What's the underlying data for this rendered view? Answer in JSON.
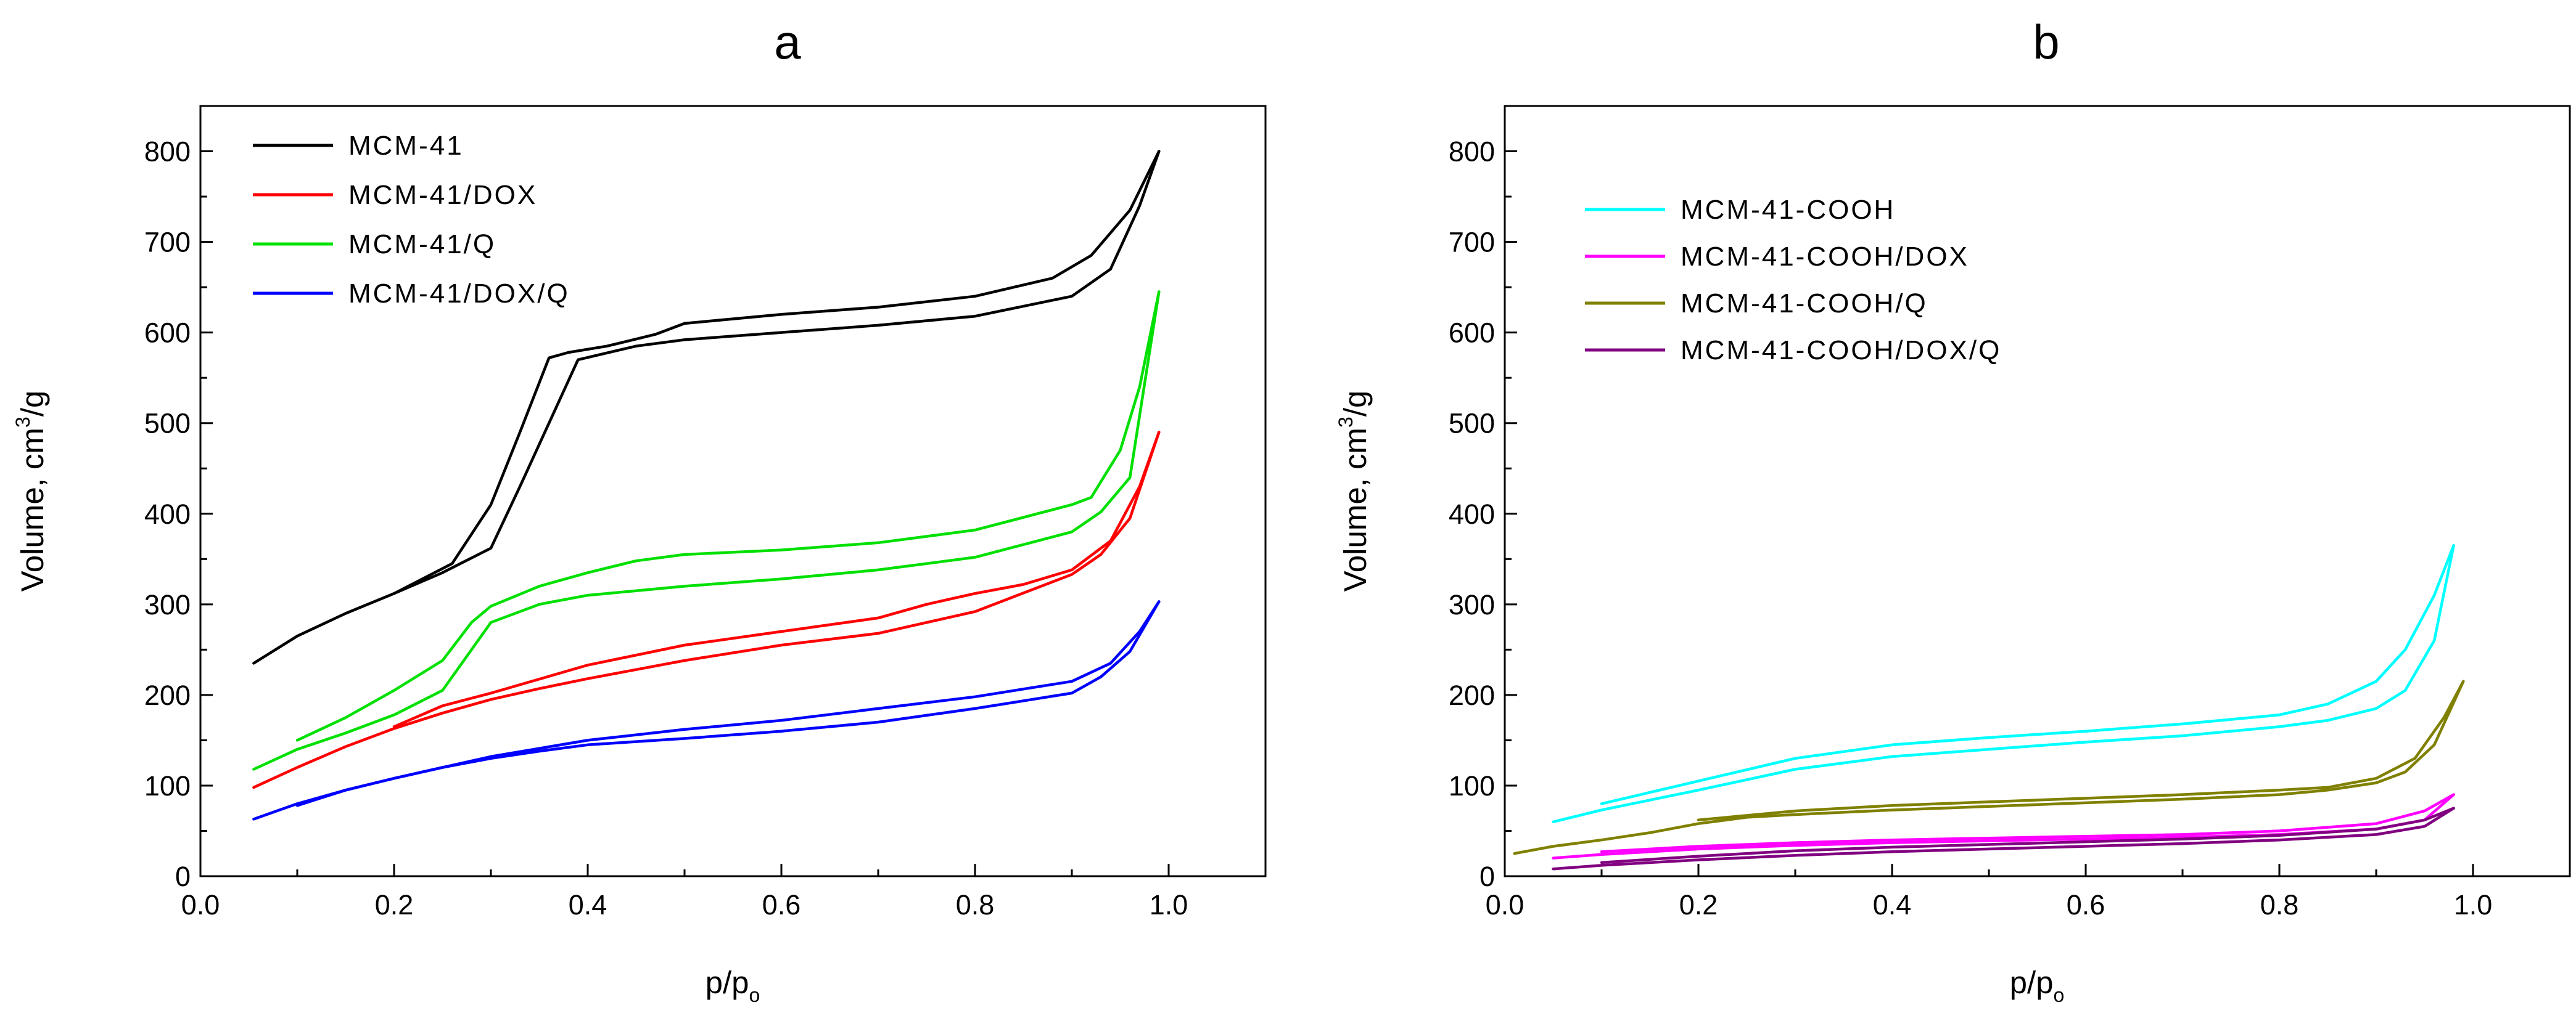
{
  "chart_data": [
    {
      "panel": "a",
      "type": "line",
      "title": "a",
      "xlabel": "p/p",
      "xlabel_sub": "o",
      "ylabel": "Volume, cm",
      "ylabel_sup": "3",
      "ylabel_tail": "/g",
      "xlim": [
        0.0,
        1.1
      ],
      "ylim": [
        0,
        850
      ],
      "xticks": [
        0.0,
        0.2,
        0.4,
        0.6,
        0.8,
        1.0
      ],
      "xtick_labels": [
        "0.0",
        "0.2",
        "0.4",
        "0.6",
        "0.8",
        "1.0"
      ],
      "yticks": [
        0,
        100,
        200,
        300,
        400,
        500,
        600,
        700,
        800
      ],
      "ytick_labels": [
        "0",
        "100",
        "200",
        "300",
        "400",
        "500",
        "600",
        "700",
        "800"
      ],
      "legend_position": "top-left",
      "series": [
        {
          "name": "MCM-41",
          "color": "#000000",
          "adsorption": [
            [
              0.055,
              235
            ],
            [
              0.1,
              265
            ],
            [
              0.15,
              290
            ],
            [
              0.2,
              312
            ],
            [
              0.25,
              335
            ],
            [
              0.3,
              362
            ],
            [
              0.33,
              430
            ],
            [
              0.36,
              500
            ],
            [
              0.39,
              570
            ],
            [
              0.45,
              585
            ],
            [
              0.5,
              592
            ],
            [
              0.6,
              600
            ],
            [
              0.7,
              608
            ],
            [
              0.8,
              618
            ],
            [
              0.9,
              640
            ],
            [
              0.94,
              670
            ],
            [
              0.97,
              740
            ],
            [
              0.99,
              800
            ]
          ],
          "desorption": [
            [
              0.99,
              800
            ],
            [
              0.96,
              735
            ],
            [
              0.92,
              685
            ],
            [
              0.88,
              660
            ],
            [
              0.8,
              640
            ],
            [
              0.7,
              628
            ],
            [
              0.6,
              620
            ],
            [
              0.5,
              610
            ],
            [
              0.47,
              598
            ],
            [
              0.42,
              585
            ],
            [
              0.38,
              578
            ],
            [
              0.36,
              572
            ],
            [
              0.33,
              490
            ],
            [
              0.3,
              410
            ],
            [
              0.26,
              345
            ],
            [
              0.2,
              312
            ]
          ]
        },
        {
          "name": "MCM-41/DOX",
          "color": "#ff0000",
          "adsorption": [
            [
              0.055,
              98
            ],
            [
              0.1,
              120
            ],
            [
              0.15,
              143
            ],
            [
              0.2,
              163
            ],
            [
              0.25,
              180
            ],
            [
              0.3,
              195
            ],
            [
              0.35,
              207
            ],
            [
              0.4,
              218
            ],
            [
              0.5,
              238
            ],
            [
              0.6,
              255
            ],
            [
              0.7,
              268
            ],
            [
              0.8,
              292
            ],
            [
              0.9,
              333
            ],
            [
              0.93,
              355
            ],
            [
              0.96,
              395
            ],
            [
              0.99,
              490
            ]
          ],
          "desorption": [
            [
              0.99,
              490
            ],
            [
              0.97,
              430
            ],
            [
              0.94,
              370
            ],
            [
              0.9,
              338
            ],
            [
              0.85,
              322
            ],
            [
              0.8,
              312
            ],
            [
              0.75,
              300
            ],
            [
              0.7,
              285
            ],
            [
              0.6,
              270
            ],
            [
              0.5,
              255
            ],
            [
              0.4,
              233
            ],
            [
              0.3,
              202
            ],
            [
              0.25,
              188
            ],
            [
              0.2,
              165
            ]
          ]
        },
        {
          "name": "MCM-41/Q",
          "color": "#00e000",
          "adsorption": [
            [
              0.055,
              118
            ],
            [
              0.1,
              140
            ],
            [
              0.15,
              158
            ],
            [
              0.2,
              178
            ],
            [
              0.25,
              205
            ],
            [
              0.27,
              235
            ],
            [
              0.3,
              280
            ],
            [
              0.35,
              300
            ],
            [
              0.4,
              310
            ],
            [
              0.5,
              320
            ],
            [
              0.6,
              328
            ],
            [
              0.7,
              338
            ],
            [
              0.8,
              352
            ],
            [
              0.9,
              380
            ],
            [
              0.93,
              402
            ],
            [
              0.96,
              440
            ],
            [
              0.99,
              645
            ]
          ],
          "desorption": [
            [
              0.99,
              645
            ],
            [
              0.97,
              540
            ],
            [
              0.95,
              470
            ],
            [
              0.92,
              418
            ],
            [
              0.9,
              410
            ],
            [
              0.8,
              382
            ],
            [
              0.7,
              368
            ],
            [
              0.6,
              360
            ],
            [
              0.5,
              355
            ],
            [
              0.45,
              348
            ],
            [
              0.4,
              335
            ],
            [
              0.35,
              320
            ],
            [
              0.3,
              298
            ],
            [
              0.28,
              280
            ],
            [
              0.25,
              238
            ],
            [
              0.2,
              205
            ],
            [
              0.15,
              175
            ],
            [
              0.1,
              150
            ]
          ]
        },
        {
          "name": "MCM-41/DOX/Q",
          "color": "#0000ff",
          "adsorption": [
            [
              0.055,
              63
            ],
            [
              0.1,
              80
            ],
            [
              0.15,
              95
            ],
            [
              0.2,
              108
            ],
            [
              0.25,
              120
            ],
            [
              0.3,
              130
            ],
            [
              0.35,
              138
            ],
            [
              0.4,
              145
            ],
            [
              0.5,
              152
            ],
            [
              0.6,
              160
            ],
            [
              0.7,
              170
            ],
            [
              0.8,
              185
            ],
            [
              0.9,
              202
            ],
            [
              0.93,
              220
            ],
            [
              0.96,
              248
            ],
            [
              0.99,
              303
            ]
          ],
          "desorption": [
            [
              0.99,
              303
            ],
            [
              0.97,
              270
            ],
            [
              0.94,
              235
            ],
            [
              0.9,
              215
            ],
            [
              0.8,
              198
            ],
            [
              0.7,
              185
            ],
            [
              0.6,
              172
            ],
            [
              0.5,
              162
            ],
            [
              0.4,
              150
            ],
            [
              0.3,
              132
            ],
            [
              0.2,
              108
            ],
            [
              0.15,
              95
            ],
            [
              0.1,
              78
            ]
          ]
        }
      ]
    },
    {
      "panel": "b",
      "type": "line",
      "title": "b",
      "xlabel": "p/p",
      "xlabel_sub": "o",
      "ylabel": "Volume, cm",
      "ylabel_sup": "3",
      "ylabel_tail": "/g",
      "xlim": [
        0.0,
        1.1
      ],
      "ylim": [
        0,
        850
      ],
      "xticks": [
        0.0,
        0.2,
        0.4,
        0.6,
        0.8,
        1.0
      ],
      "xtick_labels": [
        "0.0",
        "0.2",
        "0.4",
        "0.6",
        "0.8",
        "1.0"
      ],
      "yticks": [
        0,
        100,
        200,
        300,
        400,
        500,
        600,
        700,
        800
      ],
      "ytick_labels": [
        "0",
        "100",
        "200",
        "300",
        "400",
        "500",
        "600",
        "700",
        "800"
      ],
      "legend_position": "top-left",
      "series": [
        {
          "name": "MCM-41-COOH",
          "color": "#00ffff",
          "adsorption": [
            [
              0.05,
              60
            ],
            [
              0.1,
              73
            ],
            [
              0.2,
              95
            ],
            [
              0.3,
              118
            ],
            [
              0.4,
              132
            ],
            [
              0.5,
              140
            ],
            [
              0.6,
              148
            ],
            [
              0.7,
              155
            ],
            [
              0.8,
              165
            ],
            [
              0.85,
              172
            ],
            [
              0.9,
              185
            ],
            [
              0.93,
              205
            ],
            [
              0.96,
              260
            ],
            [
              0.98,
              365
            ]
          ],
          "desorption": [
            [
              0.98,
              365
            ],
            [
              0.96,
              310
            ],
            [
              0.93,
              250
            ],
            [
              0.9,
              215
            ],
            [
              0.85,
              190
            ],
            [
              0.8,
              178
            ],
            [
              0.7,
              168
            ],
            [
              0.6,
              160
            ],
            [
              0.5,
              153
            ],
            [
              0.4,
              145
            ],
            [
              0.3,
              130
            ],
            [
              0.2,
              105
            ],
            [
              0.1,
              80
            ]
          ]
        },
        {
          "name": "MCM-41-COOH/DOX",
          "color": "#ff00ff",
          "adsorption": [
            [
              0.05,
              20
            ],
            [
              0.1,
              24
            ],
            [
              0.2,
              30
            ],
            [
              0.3,
              34
            ],
            [
              0.4,
              37
            ],
            [
              0.5,
              39
            ],
            [
              0.6,
              41
            ],
            [
              0.7,
              43
            ],
            [
              0.8,
              46
            ],
            [
              0.9,
              52
            ],
            [
              0.95,
              62
            ],
            [
              0.98,
              90
            ]
          ],
          "desorption": [
            [
              0.98,
              90
            ],
            [
              0.95,
              72
            ],
            [
              0.9,
              58
            ],
            [
              0.8,
              50
            ],
            [
              0.7,
              46
            ],
            [
              0.6,
              44
            ],
            [
              0.5,
              42
            ],
            [
              0.4,
              40
            ],
            [
              0.3,
              37
            ],
            [
              0.2,
              33
            ],
            [
              0.1,
              27
            ]
          ]
        },
        {
          "name": "MCM-41-COOH/Q",
          "color": "#808000",
          "adsorption": [
            [
              0.01,
              25
            ],
            [
              0.05,
              33
            ],
            [
              0.1,
              40
            ],
            [
              0.15,
              48
            ],
            [
              0.2,
              58
            ],
            [
              0.25,
              65
            ],
            [
              0.3,
              68
            ],
            [
              0.4,
              73
            ],
            [
              0.5,
              77
            ],
            [
              0.6,
              81
            ],
            [
              0.7,
              85
            ],
            [
              0.8,
              90
            ],
            [
              0.85,
              95
            ],
            [
              0.9,
              103
            ],
            [
              0.93,
              115
            ],
            [
              0.96,
              145
            ],
            [
              0.99,
              215
            ]
          ],
          "desorption": [
            [
              0.99,
              215
            ],
            [
              0.97,
              175
            ],
            [
              0.94,
              130
            ],
            [
              0.9,
              108
            ],
            [
              0.85,
              98
            ],
            [
              0.8,
              95
            ],
            [
              0.7,
              90
            ],
            [
              0.6,
              86
            ],
            [
              0.5,
              82
            ],
            [
              0.4,
              78
            ],
            [
              0.3,
              72
            ],
            [
              0.2,
              62
            ]
          ]
        },
        {
          "name": "MCM-41-COOH/DOX/Q",
          "color": "#800080",
          "adsorption": [
            [
              0.05,
              8
            ],
            [
              0.1,
              12
            ],
            [
              0.2,
              18
            ],
            [
              0.3,
              23
            ],
            [
              0.4,
              27
            ],
            [
              0.5,
              30
            ],
            [
              0.6,
              33
            ],
            [
              0.7,
              36
            ],
            [
              0.8,
              40
            ],
            [
              0.9,
              46
            ],
            [
              0.95,
              55
            ],
            [
              0.98,
              75
            ]
          ],
          "desorption": [
            [
              0.98,
              75
            ],
            [
              0.95,
              62
            ],
            [
              0.9,
              52
            ],
            [
              0.8,
              45
            ],
            [
              0.7,
              41
            ],
            [
              0.6,
              38
            ],
            [
              0.5,
              35
            ],
            [
              0.4,
              32
            ],
            [
              0.3,
              28
            ],
            [
              0.2,
              22
            ],
            [
              0.1,
              15
            ]
          ]
        }
      ]
    }
  ]
}
